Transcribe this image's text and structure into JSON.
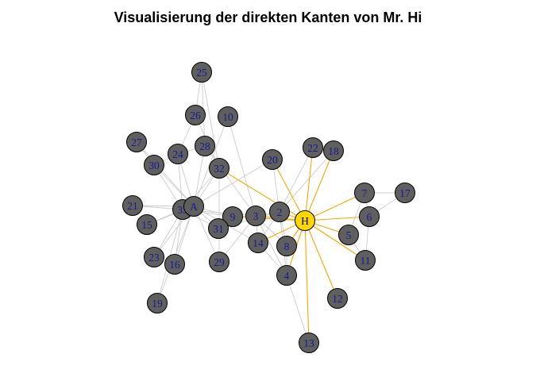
{
  "title": "Visualisierung der direkten Kanten von Mr. Hi",
  "colors": {
    "background": "#ffffff",
    "node_fill": "#5f5f5f",
    "node_stroke": "#000000",
    "label": "#1a1a8c",
    "highlight_fill": "#ffd700",
    "highlight_label": "#000000",
    "edge": "#cccccc",
    "highlight_edge": "#ffa500"
  },
  "graph": {
    "highlight": "H",
    "nodes": [
      {
        "id": "H",
        "label": "H"
      },
      {
        "id": "A",
        "label": "A"
      },
      {
        "id": "2",
        "label": "2"
      },
      {
        "id": "3",
        "label": "3"
      },
      {
        "id": "4",
        "label": "4"
      },
      {
        "id": "5",
        "label": "5"
      },
      {
        "id": "6",
        "label": "6"
      },
      {
        "id": "7",
        "label": "7"
      },
      {
        "id": "8",
        "label": "8"
      },
      {
        "id": "9",
        "label": "9"
      },
      {
        "id": "10",
        "label": "10"
      },
      {
        "id": "11",
        "label": "11"
      },
      {
        "id": "12",
        "label": "12"
      },
      {
        "id": "13",
        "label": "13"
      },
      {
        "id": "14",
        "label": "14"
      },
      {
        "id": "15",
        "label": "15"
      },
      {
        "id": "16",
        "label": "16"
      },
      {
        "id": "17",
        "label": "17"
      },
      {
        "id": "18",
        "label": "18"
      },
      {
        "id": "19",
        "label": "19"
      },
      {
        "id": "20",
        "label": "20"
      },
      {
        "id": "21",
        "label": "21"
      },
      {
        "id": "22",
        "label": "22"
      },
      {
        "id": "23",
        "label": "23"
      },
      {
        "id": "24",
        "label": "24"
      },
      {
        "id": "25",
        "label": "25"
      },
      {
        "id": "26",
        "label": "26"
      },
      {
        "id": "27",
        "label": "27"
      },
      {
        "id": "28",
        "label": "28"
      },
      {
        "id": "29",
        "label": "29"
      },
      {
        "id": "30",
        "label": "30"
      },
      {
        "id": "31",
        "label": "31"
      },
      {
        "id": "32",
        "label": "32"
      },
      {
        "id": "33",
        "label": "33"
      }
    ],
    "edges": [
      [
        "H",
        "2"
      ],
      [
        "H",
        "3"
      ],
      [
        "H",
        "4"
      ],
      [
        "H",
        "5"
      ],
      [
        "H",
        "6"
      ],
      [
        "H",
        "7"
      ],
      [
        "H",
        "8"
      ],
      [
        "H",
        "9"
      ],
      [
        "H",
        "11"
      ],
      [
        "H",
        "12"
      ],
      [
        "H",
        "13"
      ],
      [
        "H",
        "14"
      ],
      [
        "H",
        "18"
      ],
      [
        "H",
        "20"
      ],
      [
        "H",
        "22"
      ],
      [
        "H",
        "32"
      ],
      [
        "2",
        "3"
      ],
      [
        "2",
        "4"
      ],
      [
        "2",
        "8"
      ],
      [
        "2",
        "14"
      ],
      [
        "2",
        "18"
      ],
      [
        "2",
        "20"
      ],
      [
        "2",
        "22"
      ],
      [
        "2",
        "31"
      ],
      [
        "3",
        "4"
      ],
      [
        "3",
        "8"
      ],
      [
        "3",
        "9"
      ],
      [
        "3",
        "10"
      ],
      [
        "3",
        "14"
      ],
      [
        "3",
        "28"
      ],
      [
        "3",
        "29"
      ],
      [
        "3",
        "33"
      ],
      [
        "4",
        "8"
      ],
      [
        "4",
        "13"
      ],
      [
        "4",
        "14"
      ],
      [
        "5",
        "7"
      ],
      [
        "5",
        "11"
      ],
      [
        "6",
        "7"
      ],
      [
        "6",
        "11"
      ],
      [
        "6",
        "17"
      ],
      [
        "7",
        "17"
      ],
      [
        "9",
        "31"
      ],
      [
        "9",
        "33"
      ],
      [
        "9",
        "A"
      ],
      [
        "10",
        "A"
      ],
      [
        "14",
        "A"
      ],
      [
        "15",
        "33"
      ],
      [
        "15",
        "A"
      ],
      [
        "16",
        "33"
      ],
      [
        "16",
        "A"
      ],
      [
        "19",
        "33"
      ],
      [
        "19",
        "A"
      ],
      [
        "20",
        "A"
      ],
      [
        "21",
        "33"
      ],
      [
        "21",
        "A"
      ],
      [
        "23",
        "33"
      ],
      [
        "23",
        "A"
      ],
      [
        "24",
        "26"
      ],
      [
        "24",
        "28"
      ],
      [
        "24",
        "30"
      ],
      [
        "24",
        "33"
      ],
      [
        "24",
        "A"
      ],
      [
        "25",
        "26"
      ],
      [
        "25",
        "28"
      ],
      [
        "25",
        "32"
      ],
      [
        "26",
        "32"
      ],
      [
        "27",
        "30"
      ],
      [
        "27",
        "A"
      ],
      [
        "28",
        "A"
      ],
      [
        "29",
        "32"
      ],
      [
        "29",
        "A"
      ],
      [
        "30",
        "33"
      ],
      [
        "30",
        "A"
      ],
      [
        "31",
        "33"
      ],
      [
        "31",
        "A"
      ],
      [
        "32",
        "33"
      ],
      [
        "32",
        "A"
      ],
      [
        "33",
        "A"
      ]
    ]
  }
}
